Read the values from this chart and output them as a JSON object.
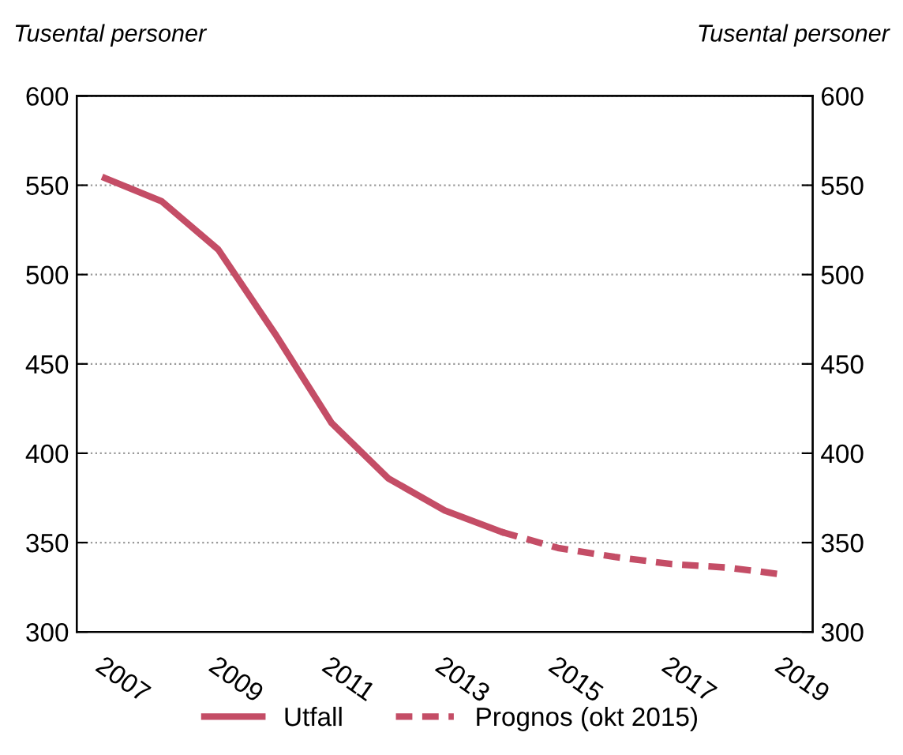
{
  "chart_data": {
    "type": "line",
    "ylabel": "Tusental personer",
    "y2label": "Tusental personer",
    "categories": [
      "2007",
      null,
      "2009",
      null,
      "2011",
      null,
      "2013",
      null,
      "2015",
      null,
      "2017",
      null,
      "2019"
    ],
    "series": [
      {
        "name": "Utfall",
        "color": "#c44d66",
        "line_style": "solid",
        "values": [
          554,
          541,
          514,
          467,
          417,
          386,
          368,
          356,
          null,
          null,
          null,
          null,
          null
        ]
      },
      {
        "name": "Prognos (okt 2015)",
        "color": "#c44d66",
        "line_style": "dashed",
        "values": [
          null,
          null,
          null,
          null,
          null,
          null,
          null,
          356,
          347,
          342,
          338,
          336,
          332
        ]
      }
    ],
    "ylim": [
      300,
      600
    ],
    "yticks": [
      300,
      350,
      400,
      450,
      500,
      550,
      600
    ],
    "y2lim": [
      300,
      600
    ],
    "y2ticks": [
      300,
      350,
      400,
      450,
      500,
      550,
      600
    ],
    "grid": "y",
    "legend": "bottom",
    "marker": "none"
  }
}
